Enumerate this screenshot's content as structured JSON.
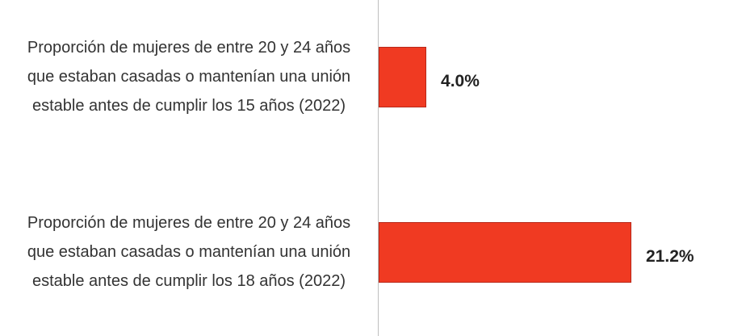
{
  "chart_data": {
    "type": "bar",
    "orientation": "horizontal",
    "categories": [
      "Proporción de mujeres de entre 20 y 24 años que estaban casadas o mantenían una unión estable antes de cumplir los 15 años (2022)",
      "Proporción de mujeres de entre 20 y 24 años que estaban casadas o mantenían una unión estable antes de cumplir los 18 años (2022)"
    ],
    "values": [
      4.0,
      21.2
    ],
    "value_labels": [
      "4.0%",
      "21.2%"
    ],
    "color": "#f03a22"
  }
}
